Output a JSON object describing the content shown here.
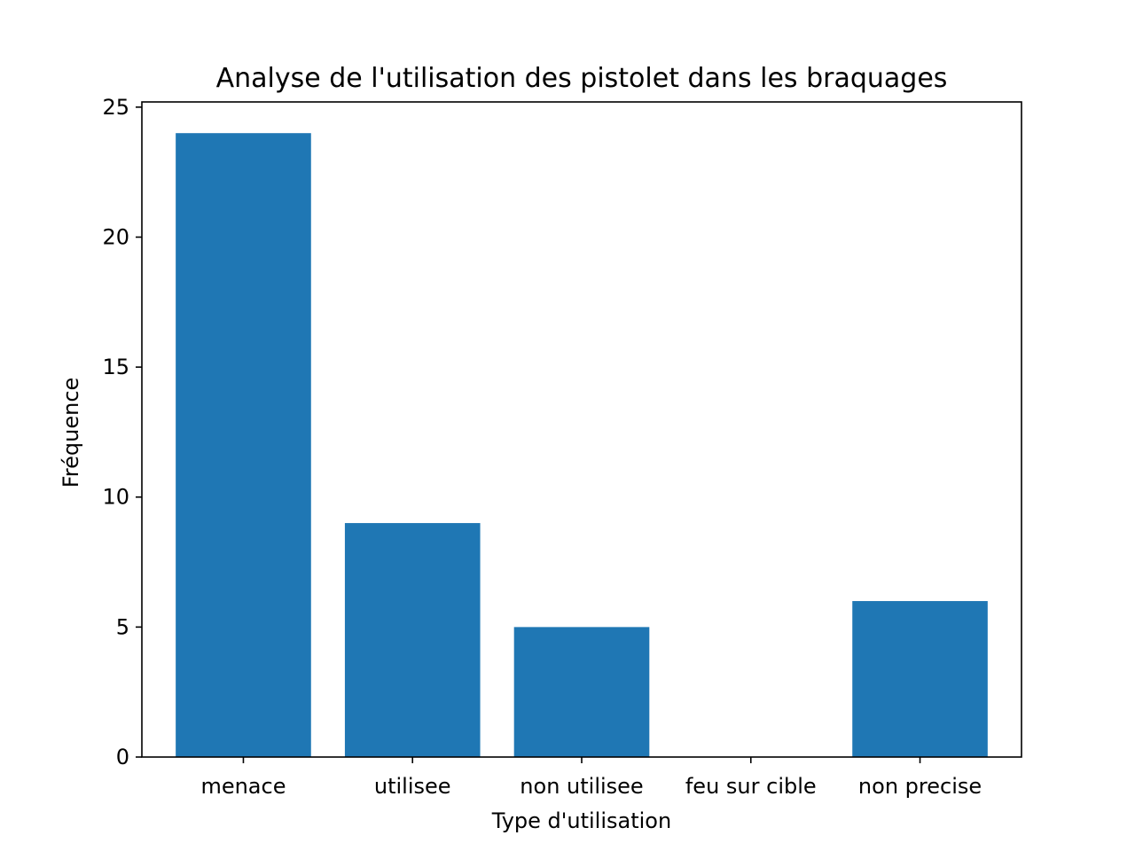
{
  "chart_data": {
    "type": "bar",
    "title": "Analyse de l'utilisation des pistolet dans les braquages",
    "xlabel": "Type d'utilisation",
    "ylabel": "Fréquence",
    "categories": [
      "menace",
      "utilisee",
      "non utilisee",
      "feu sur cible",
      "non precise"
    ],
    "values": [
      24,
      9,
      5,
      0,
      6
    ],
    "ylim": [
      0,
      25.2
    ],
    "yticks": [
      0,
      5,
      10,
      15,
      20,
      25
    ],
    "grid": false,
    "legend": "none",
    "colors": {
      "bar": "#1f77b4",
      "axis": "#000000",
      "background": "#ffffff"
    }
  }
}
